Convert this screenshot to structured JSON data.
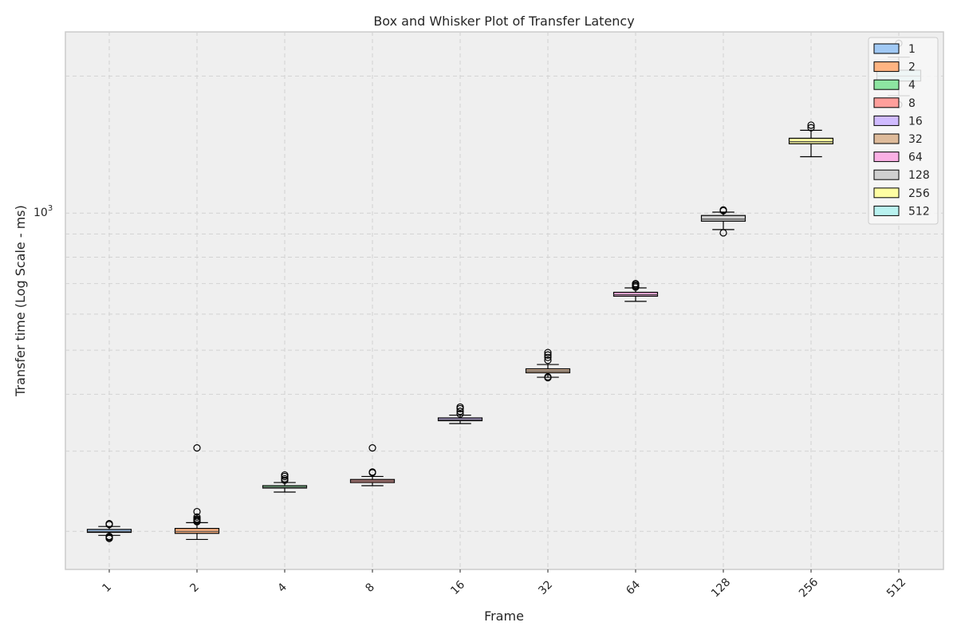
{
  "chart_data": {
    "type": "box",
    "title": "Box and Whisker Plot of Transfer Latency",
    "xlabel": "Frame",
    "ylabel": "Transfer time (Log Scale - ms)",
    "yscale": "log",
    "ylim": [
      165,
      2500
    ],
    "y_tick_label": {
      "base": "10",
      "exp": "3",
      "value": 1000
    },
    "y_minor_ticks": [
      200,
      300,
      400,
      500,
      600,
      700,
      800,
      900,
      2000
    ],
    "categories": [
      "1",
      "2",
      "4",
      "8",
      "16",
      "32",
      "64",
      "128",
      "256",
      "512"
    ],
    "grid": true,
    "legend_position": "upper right",
    "legend": [
      "1",
      "2",
      "4",
      "8",
      "16",
      "32",
      "64",
      "128",
      "256",
      "512"
    ],
    "colors": [
      "#a1c9f4",
      "#ffb482",
      "#8de5a1",
      "#ff9f9b",
      "#d0bbff",
      "#debb9b",
      "#fab0e4",
      "#cfcfcf",
      "#fffea3",
      "#b9f2f0"
    ],
    "boxes": [
      {
        "label": "1",
        "whislo": 196,
        "q1": 199,
        "median": 200,
        "q3": 202,
        "whishi": 205,
        "fliers": [
          193,
          194,
          195,
          207,
          208
        ]
      },
      {
        "label": "2",
        "whislo": 192,
        "q1": 198,
        "median": 200,
        "q3": 203,
        "whishi": 209,
        "fliers": [
          210,
          211,
          212,
          213,
          215,
          221,
          305
        ]
      },
      {
        "label": "4",
        "whislo": 244,
        "q1": 249,
        "median": 250,
        "q3": 252,
        "whishi": 256,
        "fliers": [
          259,
          261,
          264,
          266
        ]
      },
      {
        "label": "8",
        "whislo": 252,
        "q1": 256,
        "median": 258,
        "q3": 260,
        "whishi": 264,
        "fliers": [
          269,
          270,
          305
        ]
      },
      {
        "label": "16",
        "whislo": 345,
        "q1": 350,
        "median": 352,
        "q3": 355,
        "whishi": 360,
        "fliers": [
          362,
          367,
          372,
          375
        ]
      },
      {
        "label": "32",
        "whislo": 436,
        "q1": 446,
        "median": 450,
        "q3": 455,
        "whishi": 465,
        "fliers": [
          435,
          437,
          475,
          482,
          488,
          494
        ]
      },
      {
        "label": "64",
        "whislo": 640,
        "q1": 657,
        "median": 662,
        "q3": 670,
        "whishi": 685,
        "fliers": [
          688,
          692,
          696,
          700
        ]
      },
      {
        "label": "128",
        "whislo": 920,
        "q1": 960,
        "median": 970,
        "q3": 988,
        "whishi": 1005,
        "fliers": [
          905,
          1012,
          1016
        ]
      },
      {
        "label": "256",
        "whislo": 1330,
        "q1": 1420,
        "median": 1435,
        "q3": 1460,
        "whishi": 1520,
        "fliers": [
          1540,
          1560
        ]
      },
      {
        "label": "512",
        "whislo": 1810,
        "q1": 1950,
        "median": 2000,
        "q3": 2060,
        "whishi": 2200,
        "fliers": [
          1730,
          2360
        ]
      }
    ]
  }
}
